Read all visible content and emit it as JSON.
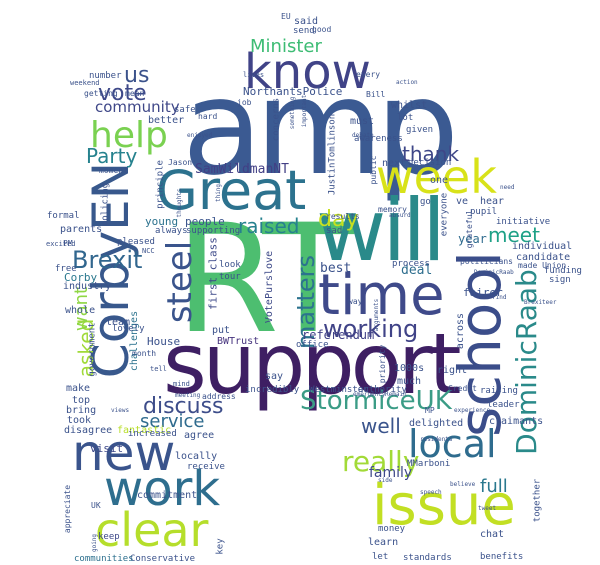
{
  "words": [
    {
      "text": "amp",
      "color": "#3b5a92"
    },
    {
      "text": "RT",
      "color": "#4dbe70"
    },
    {
      "text": "support",
      "color": "#3e1f63"
    },
    {
      "text": "will",
      "color": "#2a8a8a"
    },
    {
      "text": "Great",
      "color": "#2c728e"
    },
    {
      "text": "time",
      "color": "#3f4a8a"
    },
    {
      "text": "CorbyEN",
      "color": "#38588c"
    },
    {
      "text": "school",
      "color": "#3b4d8a"
    },
    {
      "text": "work",
      "color": "#2e6e8e"
    },
    {
      "text": "issue",
      "color": "#c2df23"
    },
    {
      "text": "new",
      "color": "#3a548c"
    },
    {
      "text": "clear",
      "color": "#b5de2b"
    },
    {
      "text": "know",
      "color": "#404387"
    },
    {
      "text": "week",
      "color": "#d8e219"
    },
    {
      "text": "local",
      "color": "#2f6c8e"
    },
    {
      "text": "help",
      "color": "#7ad151"
    },
    {
      "text": "steel",
      "color": "#3a548c"
    },
    {
      "text": "DominicRaab",
      "color": "#2a8a8a"
    },
    {
      "text": "StormiceUK",
      "color": "#3b9c86"
    },
    {
      "text": "working",
      "color": "#404387"
    },
    {
      "text": "really",
      "color": "#a2da37"
    },
    {
      "text": "Brexit",
      "color": "#31668e"
    },
    {
      "text": "discuss",
      "color": "#3d4d8a"
    },
    {
      "text": "matters",
      "color": "#2c738e"
    },
    {
      "text": "meet",
      "color": "#1fa187"
    },
    {
      "text": "vote",
      "color": "#3e4989"
    },
    {
      "text": "thank",
      "color": "#3f4788"
    },
    {
      "text": "Party",
      "color": "#26828e"
    },
    {
      "text": "raised",
      "color": "#26818e"
    },
    {
      "text": "day",
      "color": "#c8e020"
    },
    {
      "text": "well",
      "color": "#3a548c"
    },
    {
      "text": "service",
      "color": "#2f6b8e"
    },
    {
      "text": "asked",
      "color": "#a0da39"
    },
    {
      "text": "full",
      "color": "#2a788e"
    },
    {
      "text": "family",
      "color": "#3e4989"
    },
    {
      "text": "want",
      "color": "#8fd744"
    },
    {
      "text": "us",
      "color": "#3b528b"
    },
    {
      "text": "Minister",
      "color": "#3dbc74"
    },
    {
      "text": "community",
      "color": "#3f4788"
    },
    {
      "text": "SamWildmanNT",
      "color": "#423f85"
    },
    {
      "text": "Corby",
      "color": "#2a788e"
    },
    {
      "text": "best",
      "color": "#3b528b"
    },
    {
      "text": "deal",
      "color": "#2e6e8e"
    },
    {
      "text": "year",
      "color": "#2f6b8e"
    },
    {
      "text": "visit",
      "color": "#3e4989"
    },
    {
      "text": "NorthantsPolice",
      "color": "#3b528b"
    },
    {
      "text": "young",
      "color": "#2c728e"
    },
    {
      "text": "people",
      "color": "#3a548c"
    },
    {
      "text": "referendum",
      "color": "#414287"
    },
    {
      "text": "first class",
      "color": "#3e4a89"
    },
    {
      "text": "VotePurslove",
      "color": "#3e4a89"
    },
    {
      "text": "BWTrust",
      "color": "#46337e"
    },
    {
      "text": "House",
      "color": "#3b528b"
    },
    {
      "text": "challenges",
      "color": "#2c738e"
    },
    {
      "text": "fantastic",
      "color": "#b8de29"
    },
    {
      "text": "commitment",
      "color": "#3b528b"
    },
    {
      "text": "Conservative",
      "color": "#3b528b"
    },
    {
      "text": "keep",
      "color": "#3e4989"
    },
    {
      "text": "communities",
      "color": "#2d708e"
    },
    {
      "text": "industry",
      "color": "#3b528b"
    },
    {
      "text": "whole",
      "color": "#3b528b"
    },
    {
      "text": "parents",
      "color": "#3b528b"
    },
    {
      "text": "formal",
      "color": "#3b528b"
    },
    {
      "text": "free",
      "color": "#3b528b"
    },
    {
      "text": "team",
      "color": "#3b528b"
    },
    {
      "text": "government",
      "color": "#3b528b"
    },
    {
      "text": "make",
      "color": "#3b528b"
    },
    {
      "text": "top",
      "color": "#3b528b"
    },
    {
      "text": "bring",
      "color": "#3b528b"
    },
    {
      "text": "disagree",
      "color": "#3b528b"
    },
    {
      "text": "took",
      "color": "#3b528b"
    },
    {
      "text": "increased",
      "color": "#3b528b"
    },
    {
      "text": "agree",
      "color": "#3b528b"
    },
    {
      "text": "locally",
      "color": "#3b528b"
    },
    {
      "text": "receive",
      "color": "#3b528b"
    },
    {
      "text": "incredibly",
      "color": "#3b528b"
    },
    {
      "text": "say",
      "color": "#3b528b"
    },
    {
      "text": "Westminster",
      "color": "#3b528b"
    },
    {
      "text": "authority",
      "color": "#3b528b"
    },
    {
      "text": "office",
      "color": "#3b528b"
    },
    {
      "text": "put",
      "color": "#3b528b"
    },
    {
      "text": "much",
      "color": "#3b528b"
    },
    {
      "text": "1000s",
      "color": "#3b528b"
    },
    {
      "text": "right",
      "color": "#3b528b"
    },
    {
      "text": "priority",
      "color": "#3b528b"
    },
    {
      "text": "across",
      "color": "#3b528b"
    },
    {
      "text": "process",
      "color": "#3b528b"
    },
    {
      "text": "fairer",
      "color": "#3b528b"
    },
    {
      "text": "candidate",
      "color": "#3b528b"
    },
    {
      "text": "individual",
      "color": "#3b528b"
    },
    {
      "text": "funding",
      "color": "#3b528b"
    },
    {
      "text": "sign",
      "color": "#3b528b"
    },
    {
      "text": "initiative",
      "color": "#3b528b"
    },
    {
      "text": "hear",
      "color": "#3b528b"
    },
    {
      "text": "ve",
      "color": "#3b528b"
    },
    {
      "text": "go",
      "color": "#3b528b"
    },
    {
      "text": "next",
      "color": "#3b528b"
    },
    {
      "text": "decision",
      "color": "#3b528b"
    },
    {
      "text": "pupil",
      "color": "#3b528b"
    },
    {
      "text": "one",
      "color": "#3b528b"
    },
    {
      "text": "everyone",
      "color": "#3b528b"
    },
    {
      "text": "grateful",
      "color": "#3b528b"
    },
    {
      "text": "given",
      "color": "#3b528b"
    },
    {
      "text": "lot",
      "color": "#3b528b"
    },
    {
      "text": "awareness",
      "color": "#3b528b"
    },
    {
      "text": "whilst",
      "color": "#3b528b"
    },
    {
      "text": "must",
      "color": "#3b528b"
    },
    {
      "text": "said",
      "color": "#3b528b"
    },
    {
      "text": "good",
      "color": "#3b528b"
    },
    {
      "text": "send",
      "color": "#3b528b"
    },
    {
      "text": "EU",
      "color": "#3b528b"
    },
    {
      "text": "every",
      "color": "#3b528b"
    },
    {
      "text": "Bill",
      "color": "#3b528b"
    },
    {
      "text": "job",
      "color": "#3b528b"
    },
    {
      "text": "concerns",
      "color": "#3b528b"
    },
    {
      "text": "better",
      "color": "#3b528b"
    },
    {
      "text": "safe",
      "color": "#3b528b"
    },
    {
      "text": "number",
      "color": "#3b528b"
    },
    {
      "text": "getting",
      "color": "#3b528b"
    },
    {
      "text": "mean",
      "color": "#3b528b"
    },
    {
      "text": "hard",
      "color": "#3b528b"
    },
    {
      "text": "moment",
      "color": "#3b528b"
    },
    {
      "text": "principle",
      "color": "#3b528b"
    },
    {
      "text": "policing",
      "color": "#3b528b"
    },
    {
      "text": "always",
      "color": "#3b528b"
    },
    {
      "text": "pleased",
      "color": "#3b528b"
    },
    {
      "text": "supporting",
      "color": "#3b528b"
    },
    {
      "text": "sad",
      "color": "#3b528b"
    },
    {
      "text": "results",
      "color": "#3b528b"
    },
    {
      "text": "memory",
      "color": "#3b528b"
    },
    {
      "text": "public",
      "color": "#3b528b"
    },
    {
      "text": "JustinTomlinson",
      "color": "#3b528b"
    },
    {
      "text": "made Union",
      "color": "#3b528b"
    },
    {
      "text": "politicians",
      "color": "#3b528b"
    },
    {
      "text": "raising",
      "color": "#3b528b"
    },
    {
      "text": "Credit",
      "color": "#3b528b"
    },
    {
      "text": "claimants",
      "color": "#3b528b"
    },
    {
      "text": "leader",
      "color": "#3b528b"
    },
    {
      "text": "delighted",
      "color": "#3b528b"
    },
    {
      "text": "MP",
      "color": "#3b528b"
    },
    {
      "text": "MMarboni",
      "color": "#3b528b"
    },
    {
      "text": "learn",
      "color": "#3b528b"
    },
    {
      "text": "standards",
      "color": "#3b528b"
    },
    {
      "text": "money",
      "color": "#3b528b"
    },
    {
      "text": "chat",
      "color": "#3b528b"
    },
    {
      "text": "benefits",
      "color": "#3b528b"
    },
    {
      "text": "together",
      "color": "#3b528b"
    },
    {
      "text": "let",
      "color": "#3b528b"
    },
    {
      "text": "key",
      "color": "#3b528b"
    },
    {
      "text": "UK",
      "color": "#3b528b"
    },
    {
      "text": "appreciate",
      "color": "#3b528b"
    },
    {
      "text": "lovely",
      "color": "#3b528b"
    },
    {
      "text": "month",
      "color": "#3b528b"
    },
    {
      "text": "look",
      "color": "#3b528b"
    },
    {
      "text": "tour",
      "color": "#3b528b"
    },
    {
      "text": "way",
      "color": "#3b528b"
    },
    {
      "text": "address",
      "color": "#3b528b"
    },
    {
      "text": "meeting",
      "color": "#3b528b"
    },
    {
      "text": "PM",
      "color": "#3b528b"
    },
    {
      "text": "excited",
      "color": "#3b528b"
    },
    {
      "text": "Jason",
      "color": "#3b528b"
    },
    {
      "text": "enjoyed",
      "color": "#3b528b"
    },
    {
      "text": "weekend",
      "color": "#3b528b"
    },
    {
      "text": "lives",
      "color": "#3b528b"
    },
    {
      "text": "action",
      "color": "#3b528b"
    },
    {
      "text": "debate",
      "color": "#3b528b"
    },
    {
      "text": "important",
      "color": "#3b528b"
    },
    {
      "text": "something",
      "color": "#3b528b"
    },
    {
      "text": "need",
      "color": "#3b528b"
    },
    {
      "text": "find",
      "color": "#3b528b"
    },
    {
      "text": "DominicRaab",
      "color": "#3b528b"
    },
    {
      "text": "experience",
      "color": "#3b528b"
    },
    {
      "text": "residents",
      "color": "#3b528b"
    },
    {
      "text": "speech",
      "color": "#3b528b"
    },
    {
      "text": "believe",
      "color": "#3b528b"
    },
    {
      "text": "Remain",
      "color": "#3b528b"
    },
    {
      "text": "emergency",
      "color": "#3b528b"
    },
    {
      "text": "views",
      "color": "#3b528b"
    },
    {
      "text": "going",
      "color": "#3b528b"
    },
    {
      "text": "tell",
      "color": "#3b528b"
    },
    {
      "text": "mind",
      "color": "#3b528b"
    },
    {
      "text": "thing",
      "color": "#3b528b"
    },
    {
      "text": "thoughts",
      "color": "#3b528b"
    },
    {
      "text": "NCC",
      "color": "#3b528b"
    },
    {
      "text": "arguments",
      "color": "#3b528b"
    },
    {
      "text": "Brexiteer",
      "color": "#3b528b"
    },
    {
      "text": "tweet",
      "color": "#3b528b"
    },
    {
      "text": "side",
      "color": "#3b528b"
    },
    {
      "text": "absurd",
      "color": "#3b528b"
    }
  ]
}
